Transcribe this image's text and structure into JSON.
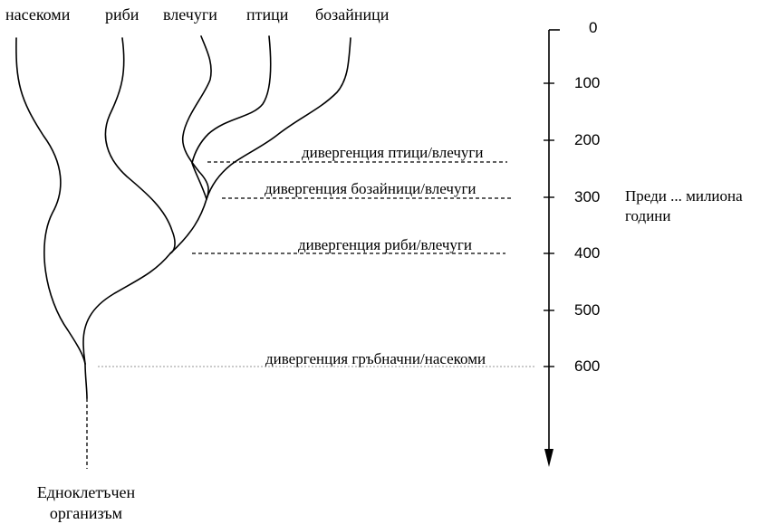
{
  "taxa": [
    "насекоми",
    "риби",
    "влечуги",
    "птици",
    "бозайници"
  ],
  "timescale": {
    "ticks": [
      "0",
      "100",
      "200",
      "300",
      "400",
      "500",
      "600"
    ],
    "label_line1": "Преди ... милиона",
    "label_line2": "години"
  },
  "divergences": [
    "дивергенция птици/влечуги",
    "дивергенция бозайници/влечуги",
    "дивергенция риби/влечуги",
    "дивергенция гръбначни/насекоми"
  ],
  "root": {
    "line1": "Едноклетъчен",
    "line2": "организъм"
  }
}
